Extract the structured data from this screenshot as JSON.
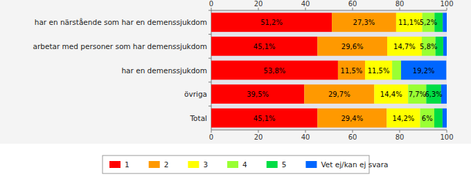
{
  "chart_data": {
    "type": "bar",
    "orientation": "horizontal",
    "stacked": true,
    "data_labels": true,
    "grid": false,
    "legend": "bottom",
    "categories": [
      "har en närstående som har en demenssjukdom",
      "arbetar med personer som har demenssjukdom",
      "har en demenssjukdom",
      "övriga",
      "Total"
    ],
    "xlim": [
      0,
      100
    ],
    "xticks": [
      0,
      20,
      40,
      60,
      80,
      100
    ],
    "series": [
      {
        "name": "1",
        "color": "#ff0000",
        "values": [
          51.2,
          45.1,
          53.8,
          39.5,
          45.1
        ],
        "value_labels": [
          "51,2%",
          "45,1%",
          "53,8%",
          "39,5%",
          "45,1%"
        ]
      },
      {
        "name": "2",
        "color": "#ff9900",
        "values": [
          27.3,
          29.6,
          11.5,
          29.7,
          29.4
        ],
        "value_labels": [
          "27,3%",
          "29,6%",
          "11,5%",
          "29,7%",
          "29,4%"
        ]
      },
      {
        "name": "3",
        "color": "#ffff00",
        "values": [
          11.1,
          14.7,
          11.5,
          14.4,
          14.2
        ],
        "value_labels": [
          "11,1%",
          "14,7%",
          "11,5%",
          "14,4%",
          "14,2%"
        ]
      },
      {
        "name": "4",
        "color": "#99ff33",
        "values": [
          5.2,
          5.8,
          3.8,
          7.7,
          6
        ],
        "value_labels": [
          "5,2%",
          "5,8%",
          null,
          "7,7%",
          "6%"
        ]
      },
      {
        "name": "5",
        "color": "#00dd44",
        "values": [
          3.5,
          3.3,
          0,
          6.3,
          3.5
        ],
        "value_labels": [
          null,
          null,
          null,
          "6,3%",
          null
        ]
      },
      {
        "name": "Vet ej/kan ej svara",
        "color": "#0066ff",
        "values": [
          1.7,
          1.5,
          19.2,
          2.4,
          1.8
        ],
        "value_labels": [
          null,
          null,
          "19,2%",
          null,
          null
        ]
      }
    ]
  }
}
